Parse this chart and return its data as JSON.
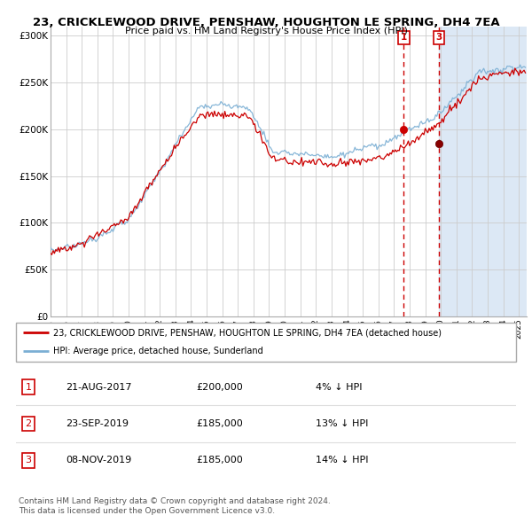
{
  "title": "23, CRICKLEWOOD DRIVE, PENSHAW, HOUGHTON LE SPRING, DH4 7EA",
  "subtitle": "Price paid vs. HM Land Registry's House Price Index (HPI)",
  "legend_line1": "23, CRICKLEWOOD DRIVE, PENSHAW, HOUGHTON LE SPRING, DH4 7EA (detached house)",
  "legend_line2": "HPI: Average price, detached house, Sunderland",
  "footnote1": "Contains HM Land Registry data © Crown copyright and database right 2024.",
  "footnote2": "This data is licensed under the Open Government Licence v3.0.",
  "hpi_color": "#7bafd4",
  "price_color": "#cc0000",
  "highlight_color": "#dce8f5",
  "yticks": [
    0,
    50000,
    100000,
    150000,
    200000,
    250000,
    300000
  ],
  "ylabels": [
    "£0",
    "£50K",
    "£100K",
    "£150K",
    "£200K",
    "£250K",
    "£300K"
  ],
  "ylim": [
    0,
    310000
  ],
  "xlim_start": 1995.0,
  "xlim_end": 2025.5,
  "t1_x": 2017.622,
  "t1_y": 200000,
  "t3_x": 2019.872,
  "t3_y": 185000,
  "highlight_start": 2019.872,
  "table_rows": [
    {
      "num": "1",
      "date": "21-AUG-2017",
      "price": "£200,000",
      "hpi": "4% ↓ HPI"
    },
    {
      "num": "2",
      "date": "23-SEP-2019",
      "price": "£185,000",
      "hpi": "13% ↓ HPI"
    },
    {
      "num": "3",
      "date": "08-NOV-2019",
      "price": "£185,000",
      "hpi": "14% ↓ HPI"
    }
  ]
}
